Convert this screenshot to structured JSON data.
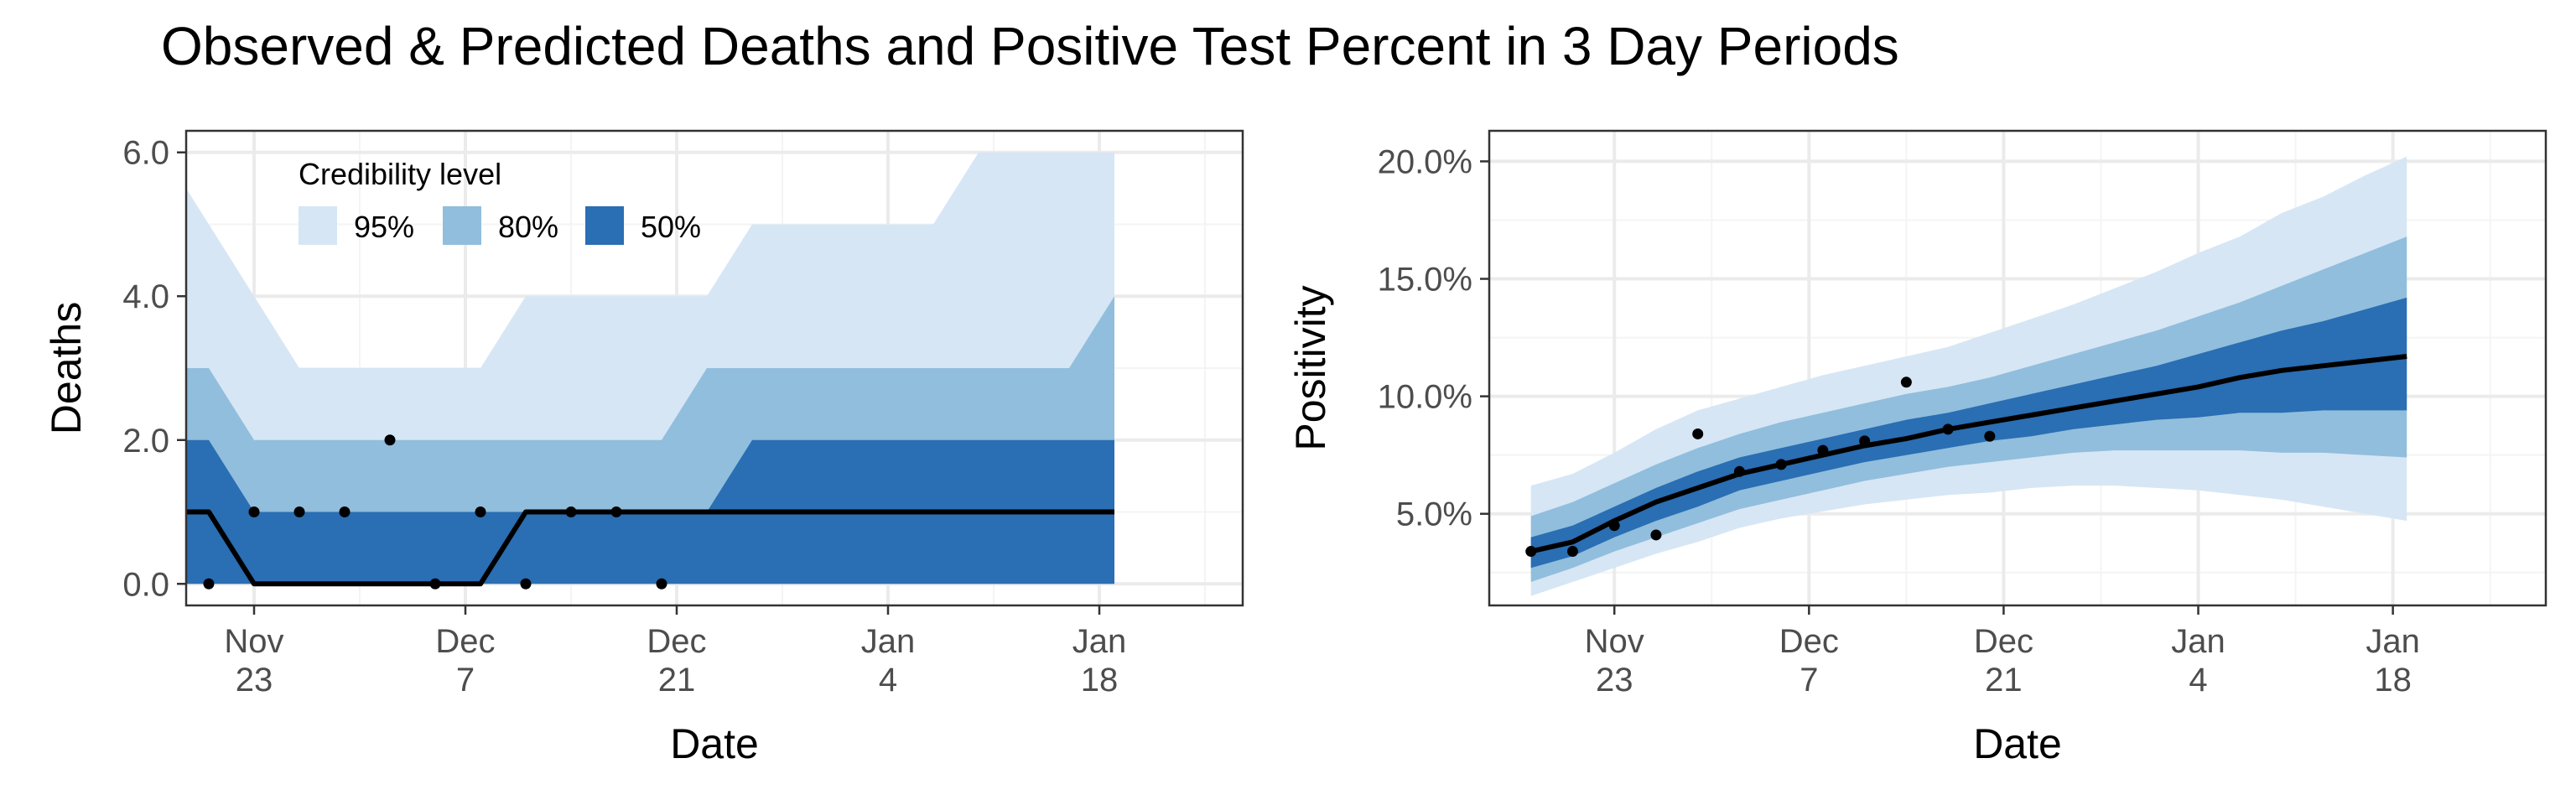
{
  "title": "Observed & Predicted Deaths and Positive Test Percent in 3 Day Periods",
  "colors": {
    "band95": "#d6e6f5",
    "band80": "#91bedc",
    "band50": "#2a6eb3",
    "line": "#000000",
    "grid_major": "#ebebeb",
    "grid_minor": "#f4f4f4",
    "panel_border": "#333333",
    "tick_text": "#4d4d4d"
  },
  "chart_data": [
    {
      "id": "deaths",
      "type": "area",
      "xlabel": "Date",
      "ylabel": "Deaths",
      "xlim": [
        -4.5,
        65.5
      ],
      "ylim": [
        -0.3,
        6.3
      ],
      "x_minor_breaks": [
        7,
        21,
        35,
        49,
        63
      ],
      "y_minor_breaks": [
        1,
        3,
        5
      ],
      "x_ticks": [
        {
          "x": 0,
          "label": [
            "Nov",
            "23"
          ]
        },
        {
          "x": 14,
          "label": [
            "Dec",
            "7"
          ]
        },
        {
          "x": 28,
          "label": [
            "Dec",
            "21"
          ]
        },
        {
          "x": 42,
          "label": [
            "Jan",
            "4"
          ]
        },
        {
          "x": 56,
          "label": [
            "Jan",
            "18"
          ]
        }
      ],
      "y_ticks": [
        {
          "y": 0,
          "label": "0.0"
        },
        {
          "y": 2,
          "label": "2.0"
        },
        {
          "y": 4,
          "label": "4.0"
        },
        {
          "y": 6,
          "label": "6.0"
        }
      ],
      "legend": {
        "title": "Credibility level",
        "position": "top-left",
        "items": [
          {
            "label": "95%",
            "color": "#d6e6f5"
          },
          {
            "label": "80%",
            "color": "#91bedc"
          },
          {
            "label": "50%",
            "color": "#2a6eb3"
          }
        ]
      },
      "x": [
        -6,
        -3,
        0,
        3,
        6,
        9,
        12,
        15,
        18,
        21,
        24,
        27,
        30,
        33,
        36,
        39,
        42,
        45,
        48,
        51,
        54,
        57
      ],
      "series": [
        {
          "name": "95% lower",
          "values": [
            0,
            0,
            0,
            0,
            0,
            0,
            0,
            0,
            0,
            0,
            0,
            0,
            0,
            0,
            0,
            0,
            0,
            0,
            0,
            0,
            0,
            0
          ]
        },
        {
          "name": "95% upper",
          "values": [
            6,
            5,
            4,
            3,
            3,
            3,
            3,
            3,
            4,
            4,
            4,
            4,
            4,
            5,
            5,
            5,
            5,
            5,
            6,
            6,
            6,
            6
          ]
        },
        {
          "name": "80% lower",
          "values": [
            0,
            0,
            0,
            0,
            0,
            0,
            0,
            0,
            0,
            0,
            0,
            0,
            0,
            0,
            0,
            0,
            0,
            0,
            0,
            0,
            0,
            0
          ]
        },
        {
          "name": "80% upper",
          "values": [
            3,
            3,
            2,
            2,
            2,
            2,
            2,
            2,
            2,
            2,
            2,
            2,
            3,
            3,
            3,
            3,
            3,
            3,
            3,
            3,
            3,
            4
          ]
        },
        {
          "name": "50% lower",
          "values": [
            0,
            0,
            0,
            0,
            0,
            0,
            0,
            0,
            0,
            0,
            0,
            0,
            0,
            0,
            0,
            0,
            0,
            0,
            0,
            0,
            0,
            0
          ]
        },
        {
          "name": "50% upper",
          "values": [
            2,
            2,
            1,
            1,
            1,
            1,
            1,
            1,
            1,
            1,
            1,
            1,
            1,
            2,
            2,
            2,
            2,
            2,
            2,
            2,
            2,
            2
          ]
        },
        {
          "name": "median",
          "values": [
            1,
            1,
            0,
            0,
            0,
            0,
            0,
            0,
            1,
            1,
            1,
            1,
            1,
            1,
            1,
            1,
            1,
            1,
            1,
            1,
            1,
            1
          ]
        }
      ],
      "observed": {
        "x": [
          -6,
          -3,
          0,
          3,
          6,
          9,
          12,
          15,
          18,
          21,
          24,
          27
        ],
        "y": [
          0,
          0,
          1,
          1,
          1,
          2,
          0,
          1,
          0,
          1,
          1,
          0
        ]
      }
    },
    {
      "id": "positivity",
      "type": "area",
      "xlabel": "Date",
      "ylabel": "Positivity",
      "xlim": [
        -9,
        67
      ],
      "ylim": [
        0.011,
        0.213
      ],
      "x_minor_breaks": [
        7,
        21,
        35,
        49,
        63
      ],
      "y_minor_breaks": [
        0.025,
        0.075,
        0.125,
        0.175
      ],
      "x_ticks": [
        {
          "x": 0,
          "label": [
            "Nov",
            "23"
          ]
        },
        {
          "x": 14,
          "label": [
            "Dec",
            "7"
          ]
        },
        {
          "x": 28,
          "label": [
            "Dec",
            "21"
          ]
        },
        {
          "x": 42,
          "label": [
            "Jan",
            "4"
          ]
        },
        {
          "x": 56,
          "label": [
            "Jan",
            "18"
          ]
        }
      ],
      "y_ticks": [
        {
          "y": 0.05,
          "label": "5.0%"
        },
        {
          "y": 0.1,
          "label": "10.0%"
        },
        {
          "y": 0.15,
          "label": "15.0%"
        },
        {
          "y": 0.2,
          "label": "20.0%"
        }
      ],
      "x": [
        -6,
        -3,
        0,
        3,
        6,
        9,
        12,
        15,
        18,
        21,
        24,
        27,
        30,
        33,
        36,
        39,
        42,
        45,
        48,
        51,
        54,
        57
      ],
      "series": [
        {
          "name": "95% lower",
          "values": [
            0.015,
            0.021,
            0.027,
            0.033,
            0.038,
            0.044,
            0.048,
            0.051,
            0.054,
            0.056,
            0.058,
            0.059,
            0.061,
            0.062,
            0.062,
            0.061,
            0.06,
            0.058,
            0.056,
            0.053,
            0.05,
            0.047
          ]
        },
        {
          "name": "95% upper",
          "values": [
            0.062,
            0.067,
            0.076,
            0.086,
            0.094,
            0.099,
            0.104,
            0.109,
            0.113,
            0.117,
            0.121,
            0.127,
            0.133,
            0.139,
            0.146,
            0.153,
            0.161,
            0.168,
            0.178,
            0.185,
            0.194,
            0.202
          ]
        },
        {
          "name": "80% lower",
          "values": [
            0.021,
            0.027,
            0.034,
            0.04,
            0.046,
            0.052,
            0.056,
            0.06,
            0.064,
            0.067,
            0.07,
            0.072,
            0.074,
            0.076,
            0.077,
            0.077,
            0.077,
            0.077,
            0.076,
            0.076,
            0.075,
            0.074
          ]
        },
        {
          "name": "80% upper",
          "values": [
            0.049,
            0.055,
            0.063,
            0.071,
            0.078,
            0.084,
            0.089,
            0.093,
            0.097,
            0.101,
            0.104,
            0.108,
            0.113,
            0.118,
            0.123,
            0.128,
            0.134,
            0.14,
            0.147,
            0.154,
            0.161,
            0.168
          ]
        },
        {
          "name": "50% lower",
          "values": [
            0.027,
            0.032,
            0.04,
            0.047,
            0.053,
            0.06,
            0.064,
            0.068,
            0.072,
            0.075,
            0.078,
            0.081,
            0.083,
            0.086,
            0.088,
            0.09,
            0.091,
            0.093,
            0.093,
            0.094,
            0.094,
            0.094
          ]
        },
        {
          "name": "50% upper",
          "values": [
            0.04,
            0.045,
            0.053,
            0.061,
            0.068,
            0.074,
            0.078,
            0.082,
            0.086,
            0.09,
            0.093,
            0.097,
            0.101,
            0.105,
            0.109,
            0.113,
            0.118,
            0.123,
            0.128,
            0.132,
            0.137,
            0.142
          ]
        },
        {
          "name": "median",
          "values": [
            0.034,
            0.038,
            0.047,
            0.055,
            0.061,
            0.067,
            0.071,
            0.075,
            0.079,
            0.082,
            0.086,
            0.089,
            0.092,
            0.095,
            0.098,
            0.101,
            0.104,
            0.108,
            0.111,
            0.113,
            0.115,
            0.117
          ]
        }
      ],
      "observed": {
        "x": [
          -6,
          -3,
          0,
          3,
          6,
          9,
          12,
          15,
          18,
          21,
          24,
          27
        ],
        "y": [
          0.034,
          0.034,
          0.045,
          0.041,
          0.084,
          0.068,
          0.071,
          0.077,
          0.081,
          0.106,
          0.086,
          0.083
        ]
      }
    }
  ]
}
